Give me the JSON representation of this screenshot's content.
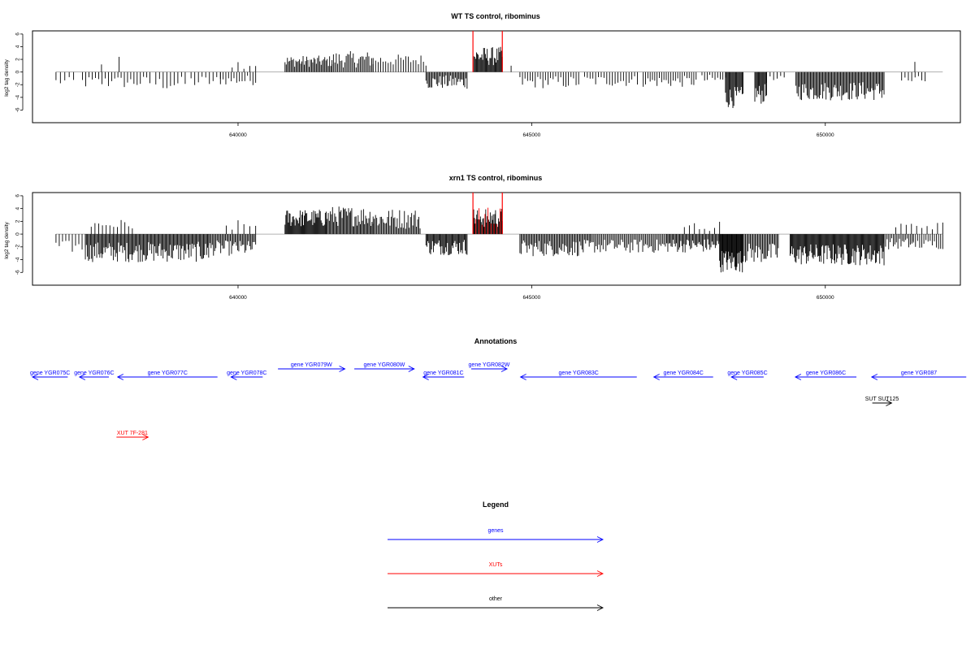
{
  "colors": {
    "gene": "#0000ff",
    "xut": "#ff0000",
    "other": "#000000",
    "marker": "#ff0000",
    "bar": "#000000",
    "baseline": "#999999"
  },
  "chart_data": [
    {
      "type": "bar",
      "title": "WT TS control, ribominus",
      "ylabel": "log2 tag density",
      "xlim": [
        636500,
        652300
      ],
      "ylim": [
        -8,
        6.5
      ],
      "yticks": [
        6,
        4,
        2,
        0,
        -2,
        -4,
        -6
      ],
      "xticks": [
        640000,
        645000,
        650000
      ],
      "xtick_labels": [
        "640000",
        "645000",
        "650000"
      ],
      "markers": [
        644000,
        644500
      ],
      "segments": [
        {
          "start": 636900,
          "end": 637200,
          "n": 5,
          "mean": -1.5,
          "amp": 0.7
        },
        {
          "start": 637350,
          "end": 637850,
          "n": 10,
          "mean": -1.6,
          "amp": 1.0
        },
        {
          "start": 637650,
          "end": 637700,
          "n": 1,
          "mean": 1.2,
          "amp": 0
        },
        {
          "start": 637950,
          "end": 638000,
          "n": 1,
          "mean": 2.4,
          "amp": 0
        },
        {
          "start": 637900,
          "end": 638500,
          "n": 12,
          "mean": -1.6,
          "amp": 1.0
        },
        {
          "start": 638600,
          "end": 639100,
          "n": 9,
          "mean": -1.8,
          "amp": 1.1
        },
        {
          "start": 639200,
          "end": 639700,
          "n": 9,
          "mean": -1.5,
          "amp": 1.0
        },
        {
          "start": 639700,
          "end": 640300,
          "n": 14,
          "mean": -1.3,
          "amp": 0.8
        },
        {
          "start": 639900,
          "end": 640300,
          "n": 5,
          "mean": 1.3,
          "amp": 0.8
        },
        {
          "start": 640800,
          "end": 641600,
          "n": 40,
          "mean": 1.7,
          "amp": 0.9
        },
        {
          "start": 641600,
          "end": 642300,
          "n": 30,
          "mean": 2.0,
          "amp": 1.3
        },
        {
          "start": 642300,
          "end": 643200,
          "n": 22,
          "mean": 1.9,
          "amp": 0.9
        },
        {
          "start": 643200,
          "end": 643900,
          "n": 36,
          "mean": -1.6,
          "amp": 1.1
        },
        {
          "start": 644000,
          "end": 644500,
          "n": 34,
          "mean": 2.5,
          "amp": 1.5
        },
        {
          "start": 644600,
          "end": 644700,
          "n": 1,
          "mean": 1.0,
          "amp": 0
        },
        {
          "start": 644800,
          "end": 645800,
          "n": 24,
          "mean": -1.6,
          "amp": 1.0
        },
        {
          "start": 645900,
          "end": 646800,
          "n": 20,
          "mean": -1.4,
          "amp": 0.9
        },
        {
          "start": 646900,
          "end": 647800,
          "n": 24,
          "mean": -1.5,
          "amp": 0.9
        },
        {
          "start": 647900,
          "end": 648300,
          "n": 10,
          "mean": -1.2,
          "amp": 0.8
        },
        {
          "start": 648300,
          "end": 648600,
          "n": 20,
          "mean": -4.0,
          "amp": 1.7
        },
        {
          "start": 648800,
          "end": 649000,
          "n": 14,
          "mean": -3.5,
          "amp": 1.6
        },
        {
          "start": 649000,
          "end": 649300,
          "n": 6,
          "mean": -1.2,
          "amp": 0.6
        },
        {
          "start": 649500,
          "end": 651000,
          "n": 80,
          "mean": -3.0,
          "amp": 1.5
        },
        {
          "start": 651300,
          "end": 651700,
          "n": 8,
          "mean": -1.3,
          "amp": 0.7
        },
        {
          "start": 651500,
          "end": 651550,
          "n": 1,
          "mean": 1.6,
          "amp": 0
        }
      ]
    },
    {
      "type": "bar",
      "title": "xrn1 TS control, ribominus",
      "ylabel": "log2 tag density",
      "xlim": [
        636500,
        652300
      ],
      "ylim": [
        -8,
        6.5
      ],
      "yticks": [
        6,
        4,
        2,
        0,
        -2,
        -4,
        -6
      ],
      "xticks": [
        640000,
        645000,
        650000
      ],
      "xtick_labels": [
        "640000",
        "645000",
        "650000"
      ],
      "markers": [
        644000,
        644500
      ],
      "segments": [
        {
          "start": 636900,
          "end": 637400,
          "n": 10,
          "mean": -2.0,
          "amp": 1.0
        },
        {
          "start": 637400,
          "end": 639500,
          "n": 120,
          "mean": -2.8,
          "amp": 1.6
        },
        {
          "start": 637500,
          "end": 638200,
          "n": 12,
          "mean": 1.5,
          "amp": 0.8
        },
        {
          "start": 639500,
          "end": 640300,
          "n": 40,
          "mean": -2.2,
          "amp": 1.2
        },
        {
          "start": 639800,
          "end": 640300,
          "n": 6,
          "mean": 1.3,
          "amp": 0.9
        },
        {
          "start": 640800,
          "end": 641500,
          "n": 50,
          "mean": 2.5,
          "amp": 1.4
        },
        {
          "start": 641500,
          "end": 642300,
          "n": 45,
          "mean": 2.8,
          "amp": 1.6
        },
        {
          "start": 642300,
          "end": 643100,
          "n": 40,
          "mean": 2.4,
          "amp": 1.6
        },
        {
          "start": 643200,
          "end": 643900,
          "n": 45,
          "mean": -2.0,
          "amp": 1.3
        },
        {
          "start": 644000,
          "end": 644500,
          "n": 40,
          "mean": 2.6,
          "amp": 1.6
        },
        {
          "start": 644800,
          "end": 646000,
          "n": 60,
          "mean": -2.2,
          "amp": 1.3
        },
        {
          "start": 646000,
          "end": 647300,
          "n": 55,
          "mean": -1.9,
          "amp": 1.1
        },
        {
          "start": 647300,
          "end": 648200,
          "n": 50,
          "mean": -1.8,
          "amp": 1.1
        },
        {
          "start": 647600,
          "end": 648200,
          "n": 8,
          "mean": 1.2,
          "amp": 0.9
        },
        {
          "start": 648200,
          "end": 648600,
          "n": 35,
          "mean": -4.2,
          "amp": 1.8
        },
        {
          "start": 648600,
          "end": 649200,
          "n": 30,
          "mean": -3.0,
          "amp": 1.6
        },
        {
          "start": 649400,
          "end": 651000,
          "n": 110,
          "mean": -3.2,
          "amp": 1.7
        },
        {
          "start": 651000,
          "end": 651500,
          "n": 20,
          "mean": -1.5,
          "amp": 0.9
        },
        {
          "start": 651200,
          "end": 652000,
          "n": 10,
          "mean": 1.3,
          "amp": 0.6
        },
        {
          "start": 651500,
          "end": 652000,
          "n": 15,
          "mean": -1.6,
          "amp": 0.8
        }
      ]
    }
  ],
  "annotations": {
    "title": "Annotations",
    "features": [
      {
        "label": "gene YGR075C",
        "start": 636500,
        "end": 637100,
        "strand": "-",
        "kind": "gene",
        "row": 0
      },
      {
        "label": "gene YGR076C",
        "start": 637300,
        "end": 637800,
        "strand": "-",
        "kind": "gene",
        "row": 0
      },
      {
        "label": "gene YGR077C",
        "start": 637950,
        "end": 639650,
        "strand": "-",
        "kind": "gene",
        "row": 0
      },
      {
        "label": "gene YGR078C",
        "start": 639880,
        "end": 640420,
        "strand": "-",
        "kind": "gene",
        "row": 0
      },
      {
        "label": "gene YGR079W",
        "start": 640680,
        "end": 641820,
        "strand": "+",
        "kind": "gene",
        "row": -1
      },
      {
        "label": "gene YGR080W",
        "start": 641980,
        "end": 643000,
        "strand": "+",
        "kind": "gene",
        "row": -1
      },
      {
        "label": "gene YGR081C",
        "start": 643150,
        "end": 643850,
        "strand": "-",
        "kind": "gene",
        "row": 0
      },
      {
        "label": "gene YGR082W",
        "start": 643970,
        "end": 644580,
        "strand": "+",
        "kind": "gene",
        "row": -1
      },
      {
        "label": "gene YGR083C",
        "start": 644810,
        "end": 646790,
        "strand": "-",
        "kind": "gene",
        "row": 0
      },
      {
        "label": "gene YGR084C",
        "start": 647080,
        "end": 648090,
        "strand": "-",
        "kind": "gene",
        "row": 0
      },
      {
        "label": "gene YGR085C",
        "start": 648400,
        "end": 648950,
        "strand": "-",
        "kind": "gene",
        "row": 0
      },
      {
        "label": "gene YGR086C",
        "start": 649490,
        "end": 650530,
        "strand": "-",
        "kind": "gene",
        "row": 0
      },
      {
        "label": "gene YGR087",
        "start": 650790,
        "end": 652400,
        "strand": "-",
        "kind": "gene",
        "row": 0
      },
      {
        "label": "SUT SUT125",
        "start": 650800,
        "end": 651130,
        "strand": "+",
        "kind": "other",
        "row": 2
      },
      {
        "label": "XUT 7F-281",
        "start": 637930,
        "end": 638470,
        "strand": "+",
        "kind": "xut",
        "row": 4
      }
    ]
  },
  "legend": {
    "title": "Legend",
    "items": [
      {
        "label": "genes",
        "kind": "gene"
      },
      {
        "label": "XUTs",
        "kind": "xut"
      },
      {
        "label": "other",
        "kind": "other"
      }
    ]
  }
}
